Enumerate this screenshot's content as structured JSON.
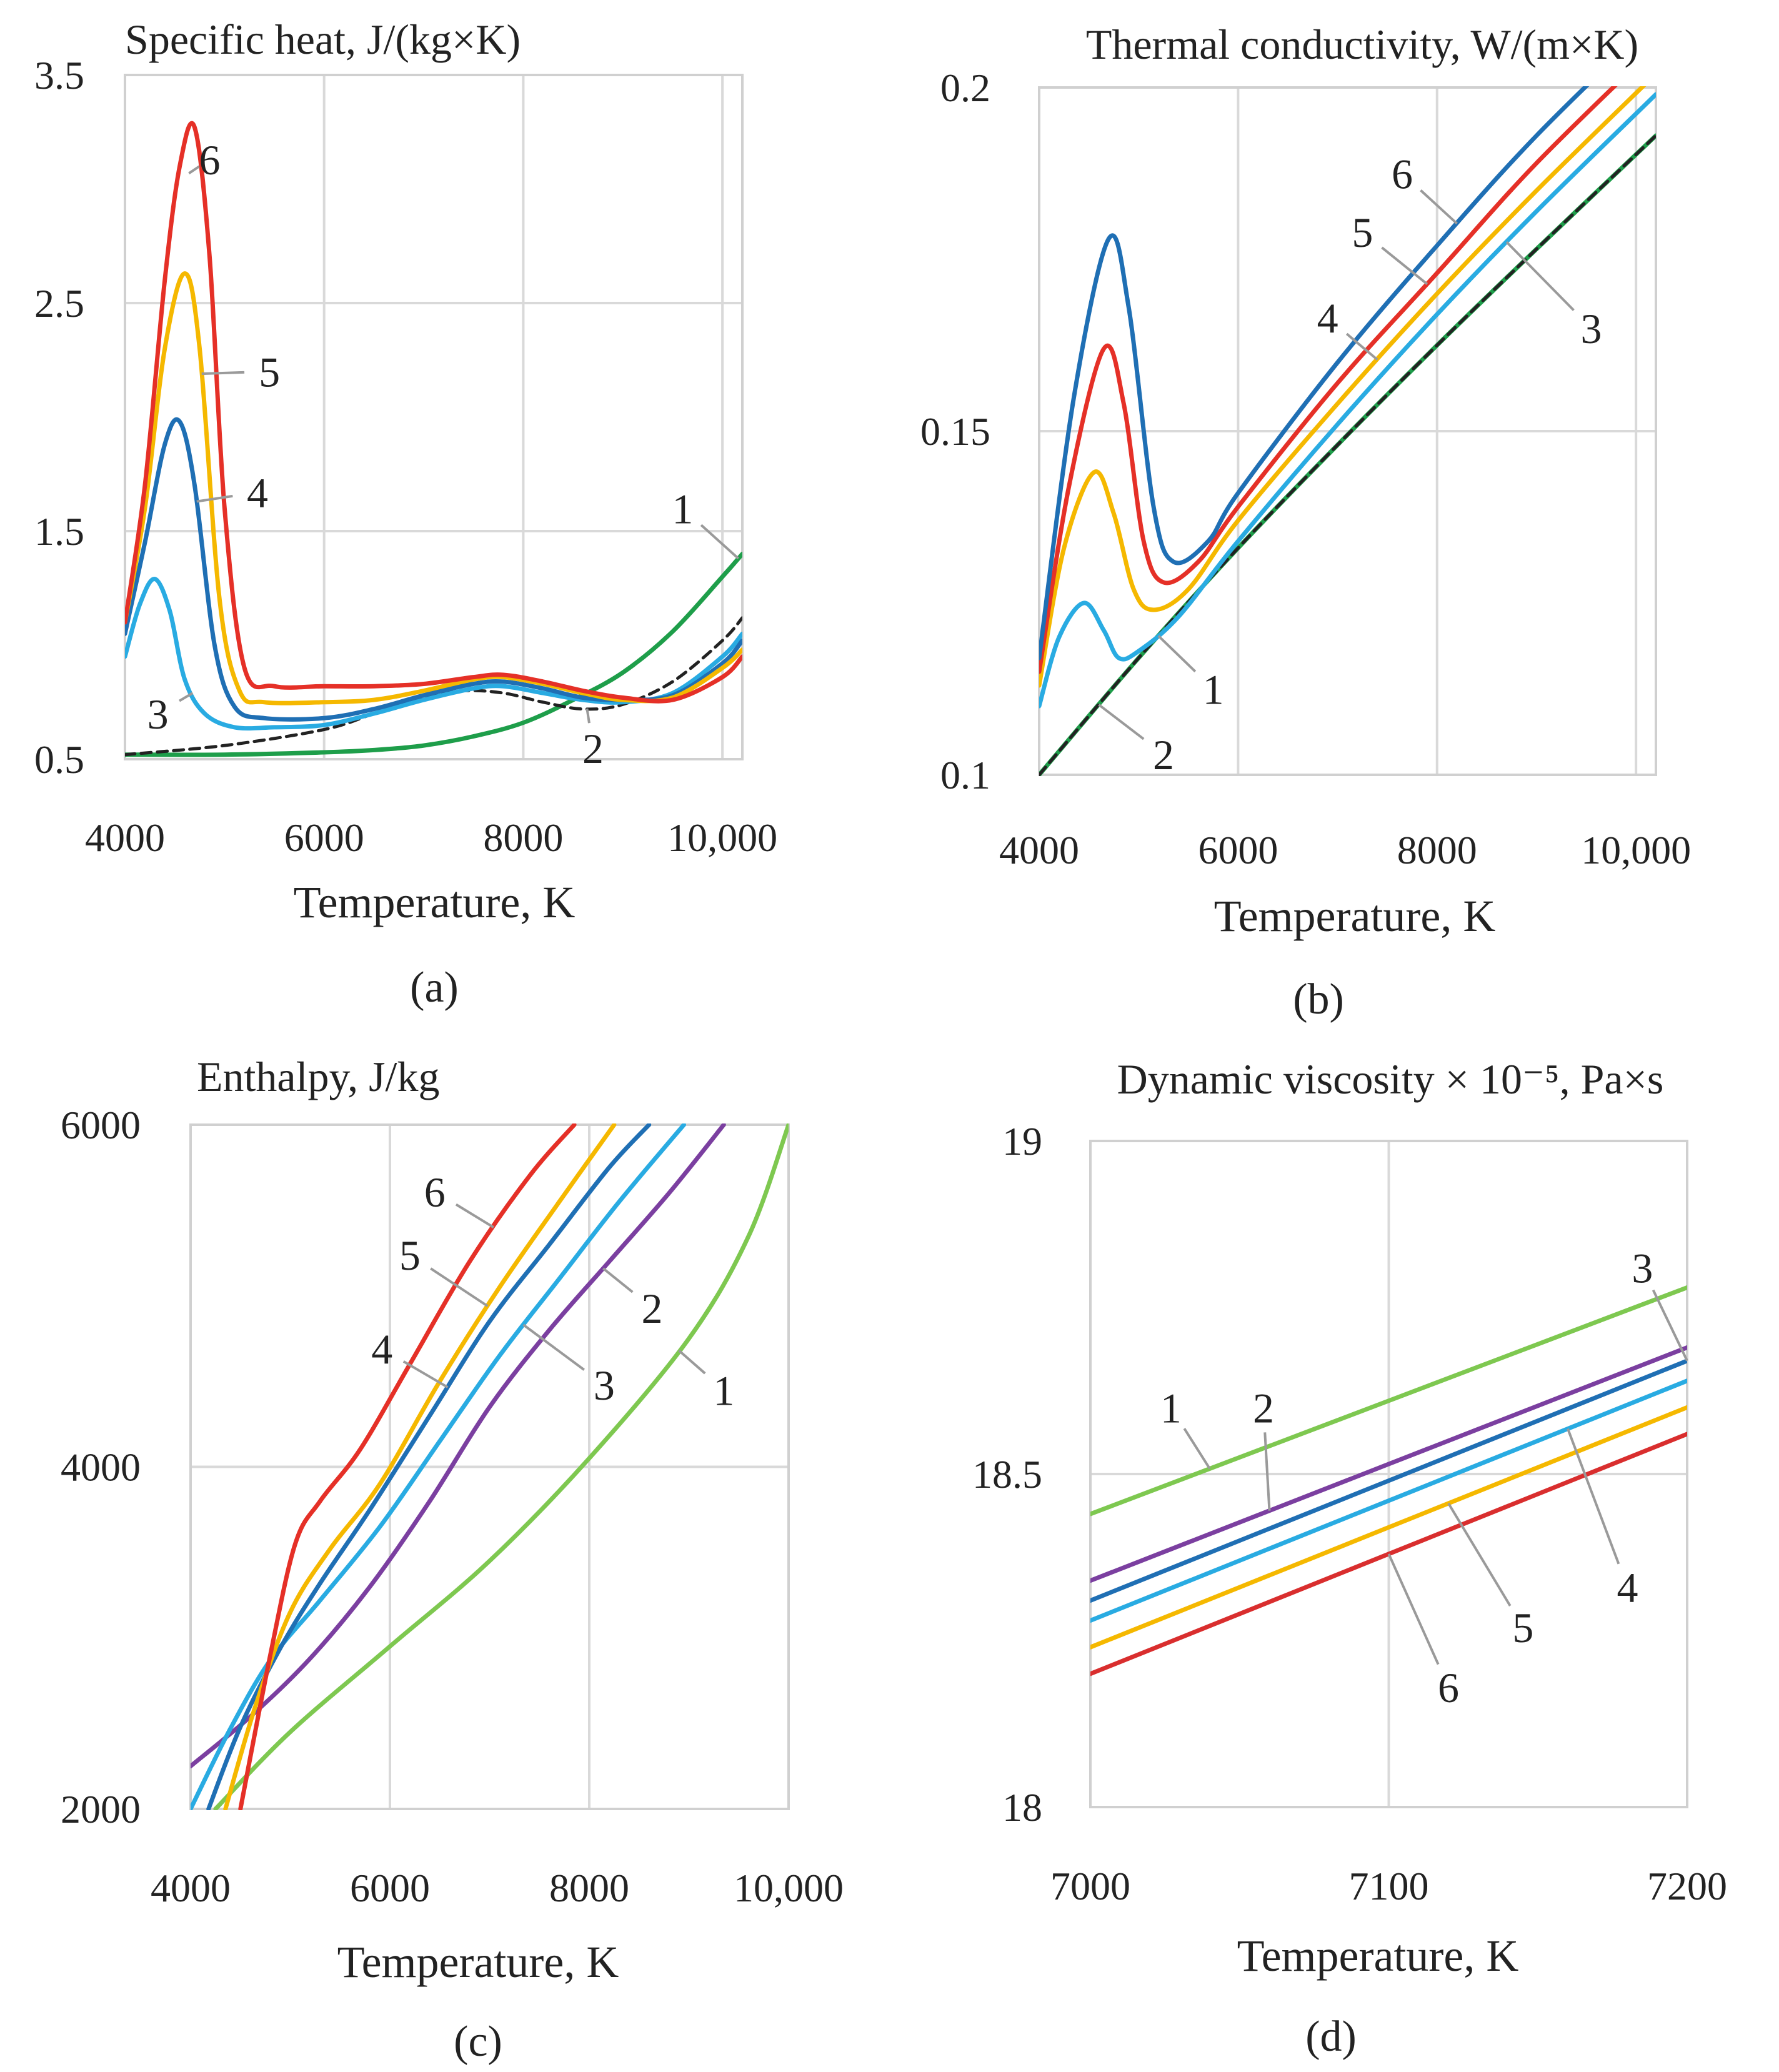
{
  "chart_data": [
    {
      "id": "a",
      "type": "line",
      "panel_label": "(a)",
      "title": "Specific heat,   J/(kg×K)",
      "xlabel": "Temperature, K",
      "ylabel": "",
      "xlim": [
        4000,
        10200
      ],
      "ylim": [
        0.5,
        3.5
      ],
      "xticks": [
        4000,
        6000,
        8000,
        10000
      ],
      "xtick_labels": [
        "4000",
        "6000",
        "8000",
        "10,000"
      ],
      "yticks": [
        0.5,
        1.5,
        2.5,
        3.5
      ],
      "ytick_labels": [
        "0.5",
        "1.5",
        "2.5",
        "3.5"
      ],
      "xgrid": [
        6000,
        8000,
        10000
      ],
      "ygrid": [
        1.5,
        2.5
      ],
      "series": [
        {
          "name": "1",
          "color": "#1e9e4a",
          "dash": false,
          "x": [
            4000,
            5000,
            6000,
            6500,
            7000,
            7500,
            8000,
            8500,
            9000,
            9500,
            10000,
            10200
          ],
          "y": [
            0.52,
            0.52,
            0.53,
            0.54,
            0.56,
            0.6,
            0.66,
            0.76,
            0.88,
            1.06,
            1.3,
            1.4
          ]
        },
        {
          "name": "2",
          "color": "#222222",
          "dash": true,
          "x": [
            4000,
            5000,
            6000,
            6500,
            7000,
            7400,
            7800,
            8200,
            8600,
            9000,
            9500,
            10000,
            10200
          ],
          "y": [
            0.52,
            0.56,
            0.63,
            0.7,
            0.77,
            0.8,
            0.79,
            0.75,
            0.72,
            0.74,
            0.84,
            1.02,
            1.12
          ]
        },
        {
          "name": "3",
          "color": "#29abe2",
          "dash": false,
          "x": [
            4000,
            4150,
            4300,
            4450,
            4600,
            4800,
            5100,
            5500,
            6000,
            6500,
            7000,
            7500,
            7800,
            8200,
            8600,
            9000,
            9500,
            10000,
            10200
          ],
          "y": [
            0.95,
            1.18,
            1.29,
            1.15,
            0.85,
            0.7,
            0.64,
            0.64,
            0.65,
            0.7,
            0.76,
            0.81,
            0.82,
            0.79,
            0.76,
            0.75,
            0.79,
            0.95,
            1.05
          ]
        },
        {
          "name": "4",
          "color": "#1f6fb4",
          "dash": false,
          "x": [
            4000,
            4200,
            4400,
            4550,
            4700,
            4900,
            5100,
            5400,
            6000,
            6500,
            7000,
            7500,
            7800,
            8200,
            8600,
            9000,
            9500,
            10000,
            10200
          ],
          "y": [
            1.05,
            1.45,
            1.88,
            1.98,
            1.7,
            1.0,
            0.73,
            0.68,
            0.68,
            0.72,
            0.78,
            0.83,
            0.84,
            0.81,
            0.77,
            0.76,
            0.78,
            0.92,
            1.02
          ]
        },
        {
          "name": "5",
          "color": "#f5b800",
          "dash": false,
          "x": [
            4000,
            4200,
            4400,
            4600,
            4750,
            4950,
            5150,
            5400,
            6000,
            6500,
            7000,
            7500,
            7800,
            8200,
            8600,
            9000,
            9500,
            10000,
            10200
          ],
          "y": [
            1.1,
            1.6,
            2.3,
            2.63,
            2.3,
            1.2,
            0.8,
            0.75,
            0.75,
            0.76,
            0.8,
            0.85,
            0.86,
            0.83,
            0.79,
            0.76,
            0.77,
            0.9,
            0.98
          ]
        },
        {
          "name": "6",
          "color": "#e53027",
          "dash": false,
          "x": [
            4000,
            4200,
            4400,
            4550,
            4700,
            4850,
            5000,
            5200,
            5500,
            6000,
            6500,
            7000,
            7500,
            7800,
            8200,
            8600,
            9000,
            9500,
            10000,
            10200
          ],
          "y": [
            1.1,
            1.7,
            2.6,
            3.1,
            3.27,
            2.7,
            1.6,
            0.9,
            0.82,
            0.82,
            0.82,
            0.83,
            0.86,
            0.87,
            0.84,
            0.8,
            0.77,
            0.76,
            0.86,
            0.95
          ]
        }
      ],
      "annotations": [
        {
          "text": "6",
          "x": 4850,
          "y": 3.13
        },
        {
          "text": "5",
          "x": 5450,
          "y": 2.2
        },
        {
          "text": "4",
          "x": 5330,
          "y": 1.67
        },
        {
          "text": "3",
          "x": 4330,
          "y": 0.7
        },
        {
          "text": "1",
          "x": 9600,
          "y": 1.6
        },
        {
          "text": "2",
          "x": 8700,
          "y": 0.55
        }
      ]
    },
    {
      "id": "b",
      "type": "line",
      "panel_label": "(b)",
      "title": "Thermal conductivity, W/(m×K)",
      "xlabel": "Temperature, K",
      "ylabel": "",
      "xlim": [
        4000,
        10200
      ],
      "ylim": [
        0.1,
        0.2
      ],
      "xticks": [
        4000,
        6000,
        8000,
        10000
      ],
      "xtick_labels": [
        "4000",
        "6000",
        "8000",
        "10,000"
      ],
      "yticks": [
        0.1,
        0.15,
        0.2
      ],
      "ytick_labels": [
        "0.1",
        "0.15",
        "0.2"
      ],
      "xgrid": [
        6000,
        8000,
        10000
      ],
      "ygrid": [
        0.15
      ],
      "series": [
        {
          "name": "1",
          "color": "#1e9e4a",
          "dash": false,
          "x": [
            4000,
            5000,
            6000,
            7000,
            8000,
            9000,
            10200
          ],
          "y": [
            0.1,
            0.117,
            0.133,
            0.148,
            0.1625,
            0.1765,
            0.193
          ]
        },
        {
          "name": "2",
          "color": "#222222",
          "dash": true,
          "x": [
            4000,
            5000,
            6000,
            7000,
            8000,
            9000,
            10200
          ],
          "y": [
            0.1,
            0.117,
            0.133,
            0.148,
            0.1625,
            0.1765,
            0.193
          ]
        },
        {
          "name": "3",
          "color": "#29abe2",
          "dash": false,
          "x": [
            4000,
            4200,
            4450,
            4650,
            4800,
            5000,
            5400,
            6000,
            7000,
            8000,
            9000,
            10200
          ],
          "y": [
            0.11,
            0.12,
            0.125,
            0.121,
            0.117,
            0.118,
            0.123,
            0.134,
            0.151,
            0.167,
            0.182,
            0.199
          ]
        },
        {
          "name": "4",
          "color": "#f5b800",
          "dash": false,
          "x": [
            4000,
            4250,
            4550,
            4750,
            4950,
            5150,
            5500,
            6000,
            7000,
            8000,
            9000,
            10200
          ],
          "y": [
            0.113,
            0.133,
            0.144,
            0.138,
            0.127,
            0.124,
            0.127,
            0.137,
            0.154,
            0.17,
            0.185,
            0.202
          ]
        },
        {
          "name": "5",
          "color": "#e53027",
          "dash": false,
          "x": [
            4000,
            4300,
            4650,
            4850,
            5050,
            5250,
            5600,
            6000,
            7000,
            8000,
            9000,
            10200
          ],
          "y": [
            0.115,
            0.142,
            0.162,
            0.154,
            0.134,
            0.128,
            0.131,
            0.139,
            0.157,
            0.173,
            0.189,
            0.206
          ]
        },
        {
          "name": "6",
          "color": "#1f6fb4",
          "dash": false,
          "x": [
            4000,
            4350,
            4700,
            4900,
            5150,
            5350,
            5700,
            6000,
            7000,
            8000,
            9000,
            10200
          ],
          "y": [
            0.117,
            0.155,
            0.178,
            0.168,
            0.139,
            0.131,
            0.134,
            0.141,
            0.16,
            0.177,
            0.193,
            0.21
          ]
        }
      ],
      "annotations": [
        {
          "text": "6",
          "x": 7650,
          "y": 0.1875
        },
        {
          "text": "5",
          "x": 7250,
          "y": 0.179
        },
        {
          "text": "4",
          "x": 6900,
          "y": 0.1665
        },
        {
          "text": "3",
          "x": 9550,
          "y": 0.165
        },
        {
          "text": "1",
          "x": 5750,
          "y": 0.1125
        },
        {
          "text": "2",
          "x": 5250,
          "y": 0.103
        }
      ]
    },
    {
      "id": "c",
      "type": "line",
      "panel_label": "(c)",
      "title": "Enthalpy,   J/kg",
      "xlabel": "Temperature, K",
      "ylabel": "",
      "xlim": [
        4000,
        10000
      ],
      "ylim": [
        2000,
        6000
      ],
      "xticks": [
        4000,
        6000,
        8000,
        10000
      ],
      "xtick_labels": [
        "4000",
        "6000",
        "8000",
        "10,000"
      ],
      "yticks": [
        2000,
        4000,
        6000
      ],
      "ytick_labels": [
        "2000",
        "4000",
        "6000"
      ],
      "xgrid": [
        6000,
        8000
      ],
      "ygrid": [
        4000
      ],
      "series": [
        {
          "name": "1",
          "color": "#7ec850",
          "dash": false,
          "x": [
            4250,
            5000,
            6000,
            7000,
            8000,
            9000,
            9600,
            10000
          ],
          "y": [
            2000,
            2450,
            2950,
            3450,
            4050,
            4750,
            5350,
            6000
          ]
        },
        {
          "name": "2",
          "color": "#7b3fa0",
          "dash": false,
          "x": [
            4000,
            4600,
            5200,
            5800,
            6400,
            7000,
            7600,
            8200,
            8800,
            9350
          ],
          "y": [
            2250,
            2540,
            2880,
            3300,
            3800,
            4350,
            4800,
            5200,
            5600,
            6000
          ]
        },
        {
          "name": "3",
          "color": "#29abe2",
          "dash": false,
          "x": [
            4000,
            4400,
            4800,
            5300,
            5900,
            6500,
            7100,
            7700,
            8300,
            8950
          ],
          "y": [
            2000,
            2470,
            2870,
            3220,
            3650,
            4150,
            4650,
            5100,
            5550,
            6000
          ]
        },
        {
          "name": "4",
          "color": "#1f6fb4",
          "dash": false,
          "x": [
            4180,
            4500,
            4900,
            5300,
            5800,
            6400,
            7000,
            7600,
            8200,
            8600
          ],
          "y": [
            2000,
            2480,
            2940,
            3320,
            3750,
            4300,
            4850,
            5300,
            5750,
            6000
          ]
        },
        {
          "name": "5",
          "color": "#f5b800",
          "dash": false,
          "x": [
            4350,
            4650,
            5000,
            5400,
            5900,
            6500,
            7100,
            7700,
            8250
          ],
          "y": [
            2000,
            2600,
            3150,
            3520,
            3900,
            4500,
            5050,
            5550,
            6000
          ]
        },
        {
          "name": "6",
          "color": "#e53027",
          "dash": false,
          "x": [
            4500,
            4800,
            5050,
            5300,
            5700,
            6200,
            6800,
            7400,
            7850
          ],
          "y": [
            2000,
            2900,
            3550,
            3800,
            4100,
            4600,
            5200,
            5700,
            6000
          ]
        }
      ],
      "annotations": [
        {
          "text": "6",
          "x": 6450,
          "y": 5610
        },
        {
          "text": "5",
          "x": 6200,
          "y": 5240
        },
        {
          "text": "4",
          "x": 5920,
          "y": 4690
        },
        {
          "text": "3",
          "x": 8150,
          "y": 4480
        },
        {
          "text": "2",
          "x": 8630,
          "y": 4930
        },
        {
          "text": "1",
          "x": 9350,
          "y": 4450
        }
      ]
    },
    {
      "id": "d",
      "type": "line",
      "panel_label": "(d)",
      "title": "Dynamic viscosity × 10⁻⁵, Pa×s",
      "xlabel": "Temperature, K",
      "ylabel": "",
      "xlim": [
        7000,
        7200
      ],
      "ylim": [
        18,
        19
      ],
      "xticks": [
        7000,
        7100,
        7200
      ],
      "xtick_labels": [
        "7000",
        "7100",
        "7200"
      ],
      "yticks": [
        18,
        18.5,
        19
      ],
      "ytick_labels": [
        "18",
        "18.5",
        "19"
      ],
      "xgrid": [
        7100
      ],
      "ygrid": [
        18.5
      ],
      "series": [
        {
          "name": "1",
          "color": "#7ec850",
          "dash": false,
          "x": [
            7000,
            7200
          ],
          "y": [
            18.44,
            18.78
          ]
        },
        {
          "name": "2",
          "color": "#7b3fa0",
          "dash": false,
          "x": [
            7000,
            7200
          ],
          "y": [
            18.34,
            18.69
          ]
        },
        {
          "name": "3",
          "color": "#1f6fb4",
          "dash": false,
          "x": [
            7000,
            7200
          ],
          "y": [
            18.31,
            18.67
          ]
        },
        {
          "name": "4",
          "color": "#29abe2",
          "dash": false,
          "x": [
            7000,
            7200
          ],
          "y": [
            18.28,
            18.64
          ]
        },
        {
          "name": "5",
          "color": "#f5b800",
          "dash": false,
          "x": [
            7000,
            7200
          ],
          "y": [
            18.24,
            18.6
          ]
        },
        {
          "name": "6",
          "color": "#d92e2e",
          "dash": false,
          "x": [
            7000,
            7200
          ],
          "y": [
            18.2,
            18.56
          ]
        }
      ],
      "annotations": [
        {
          "text": "1",
          "x": 7027,
          "y": 18.6
        },
        {
          "text": "2",
          "x": 7058,
          "y": 18.6
        },
        {
          "text": "3",
          "x": 7185,
          "y": 18.81
        },
        {
          "text": "4",
          "x": 7180,
          "y": 18.33
        },
        {
          "text": "5",
          "x": 7145,
          "y": 18.27
        },
        {
          "text": "6",
          "x": 7120,
          "y": 18.18
        }
      ]
    }
  ]
}
